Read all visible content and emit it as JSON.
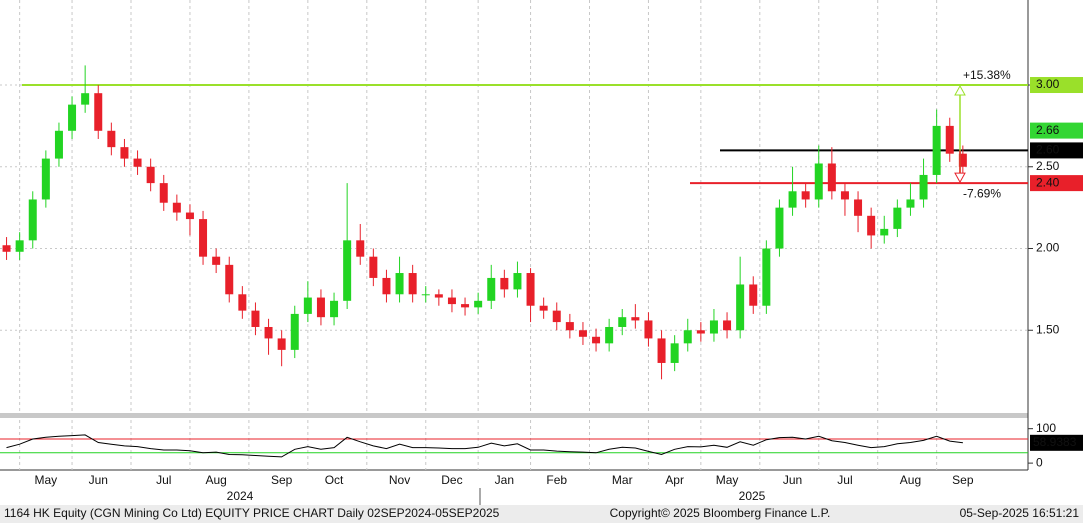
{
  "chart_data": {
    "type": "candlestick",
    "categories": [
      null,
      null,
      null,
      "May",
      null,
      null,
      null,
      "Jun",
      null,
      null,
      null,
      null,
      "Jul",
      null,
      null,
      null,
      "Aug",
      null,
      null,
      null,
      null,
      "Sep",
      null,
      null,
      null,
      "Oct",
      null,
      null,
      null,
      null,
      "Nov",
      null,
      null,
      null,
      "Dec",
      null,
      null,
      null,
      "Jan",
      null,
      null,
      null,
      "Feb",
      null,
      null,
      null,
      null,
      "Mar",
      null,
      null,
      null,
      "Apr",
      null,
      null,
      null,
      "May",
      null,
      null,
      null,
      null,
      "Jun",
      null,
      null,
      null,
      "Jul",
      null,
      null,
      null,
      null,
      "Aug",
      null,
      null,
      null,
      "Sep"
    ],
    "open": [
      2.02,
      1.98,
      2.05,
      2.3,
      2.55,
      2.72,
      2.88,
      2.95,
      2.72,
      2.62,
      2.55,
      2.5,
      2.4,
      2.28,
      2.22,
      2.18,
      1.95,
      1.9,
      1.72,
      1.62,
      1.52,
      1.45,
      1.38,
      1.6,
      1.7,
      1.58,
      1.68,
      2.05,
      1.95,
      1.82,
      1.72,
      1.85,
      1.72,
      1.72,
      1.7,
      1.66,
      1.64,
      1.68,
      1.82,
      1.75,
      1.85,
      1.65,
      1.62,
      1.55,
      1.5,
      1.46,
      1.42,
      1.52,
      1.58,
      1.56,
      1.45,
      1.3,
      1.42,
      1.5,
      1.48,
      1.56,
      1.5,
      1.78,
      1.65,
      2.0,
      2.25,
      2.35,
      2.3,
      2.52,
      2.35,
      2.3,
      2.2,
      2.08,
      2.12,
      2.25,
      2.3,
      2.45,
      2.75,
      2.58
    ],
    "high": [
      2.07,
      2.1,
      2.35,
      2.6,
      2.77,
      2.93,
      3.12,
      3.0,
      2.77,
      2.67,
      2.6,
      2.55,
      2.45,
      2.33,
      2.27,
      2.23,
      2.0,
      1.95,
      1.77,
      1.67,
      1.57,
      1.5,
      1.65,
      1.8,
      1.75,
      1.73,
      2.4,
      2.15,
      2.0,
      1.87,
      1.95,
      1.9,
      1.77,
      1.75,
      1.75,
      1.7,
      1.73,
      1.9,
      1.87,
      1.92,
      1.88,
      1.7,
      1.67,
      1.6,
      1.55,
      1.51,
      1.57,
      1.63,
      1.66,
      1.61,
      1.5,
      1.47,
      1.57,
      1.55,
      1.63,
      1.61,
      1.95,
      1.83,
      2.05,
      2.3,
      2.5,
      2.4,
      2.63,
      2.62,
      2.4,
      2.35,
      2.25,
      2.2,
      2.3,
      2.4,
      2.55,
      2.85,
      2.8,
      2.63
    ],
    "low": [
      1.93,
      1.93,
      2.0,
      2.25,
      2.5,
      2.67,
      2.83,
      2.67,
      2.57,
      2.5,
      2.45,
      2.35,
      2.23,
      2.17,
      2.08,
      1.9,
      1.85,
      1.67,
      1.57,
      1.47,
      1.35,
      1.28,
      1.33,
      1.55,
      1.53,
      1.53,
      1.63,
      1.9,
      1.77,
      1.67,
      1.67,
      1.67,
      1.67,
      1.65,
      1.61,
      1.59,
      1.6,
      1.63,
      1.7,
      1.7,
      1.55,
      1.57,
      1.5,
      1.45,
      1.41,
      1.37,
      1.37,
      1.47,
      1.51,
      1.4,
      1.2,
      1.25,
      1.37,
      1.43,
      1.43,
      1.45,
      1.45,
      1.6,
      1.6,
      1.95,
      2.2,
      2.25,
      2.25,
      2.3,
      2.2,
      2.1,
      2.0,
      2.03,
      2.07,
      2.2,
      2.25,
      2.4,
      2.53,
      2.45
    ],
    "close": [
      1.98,
      2.05,
      2.3,
      2.55,
      2.72,
      2.88,
      2.95,
      2.72,
      2.62,
      2.55,
      2.5,
      2.4,
      2.28,
      2.22,
      2.18,
      1.95,
      1.9,
      1.72,
      1.62,
      1.52,
      1.45,
      1.38,
      1.6,
      1.7,
      1.58,
      1.68,
      2.05,
      1.95,
      1.82,
      1.72,
      1.85,
      1.72,
      1.72,
      1.7,
      1.66,
      1.64,
      1.68,
      1.82,
      1.75,
      1.85,
      1.65,
      1.62,
      1.55,
      1.5,
      1.46,
      1.42,
      1.52,
      1.58,
      1.56,
      1.45,
      1.3,
      1.42,
      1.5,
      1.48,
      1.56,
      1.5,
      1.78,
      1.65,
      2.0,
      2.25,
      2.35,
      2.3,
      2.52,
      2.35,
      2.3,
      2.2,
      2.08,
      2.12,
      2.25,
      2.3,
      2.45,
      2.75,
      2.58,
      2.5
    ],
    "up_color": "#22d422",
    "down_color": "#e8202a",
    "ylim": [
      1.0,
      3.52
    ],
    "yticks": [
      {
        "value": 1.5,
        "label": "1.50"
      },
      {
        "value": 2.0,
        "label": "2.00"
      },
      {
        "value": 2.5,
        "label": "2.50"
      },
      {
        "value": 3.0,
        "label": "3.00"
      }
    ],
    "grid": true,
    "levels": [
      {
        "value": 2.66,
        "label": "2.66",
        "color": "#33d633",
        "text_color": "#000000"
      },
      {
        "value": 3.0,
        "label": "3.00",
        "color": "#9ae02a",
        "text_color": "#000000"
      },
      {
        "value": 2.6,
        "label": "2.60",
        "color": "#000000",
        "text_color": "#ffffff"
      },
      {
        "value": 2.4,
        "label": "2.40",
        "color": "#e8202a",
        "text_color": "#000000"
      }
    ],
    "annotations": [
      "+15.38%",
      "-7.69%"
    ],
    "years": [
      "2024",
      "2025"
    ],
    "rsi": {
      "values": [
        45,
        55,
        70,
        75,
        78,
        80,
        82,
        60,
        55,
        50,
        48,
        42,
        38,
        38,
        36,
        30,
        32,
        25,
        24,
        22,
        20,
        18,
        40,
        48,
        40,
        45,
        75,
        62,
        50,
        42,
        55,
        45,
        45,
        44,
        42,
        42,
        46,
        58,
        50,
        56,
        38,
        38,
        35,
        33,
        32,
        30,
        40,
        46,
        44,
        34,
        25,
        40,
        48,
        47,
        52,
        46,
        62,
        52,
        68,
        74,
        75,
        70,
        78,
        65,
        60,
        52,
        45,
        48,
        56,
        60,
        66,
        78,
        64,
        58.9383
      ],
      "color": "#000000",
      "ylim": [
        -20,
        131
      ],
      "yticks": [
        0,
        100
      ],
      "upper": 70,
      "upper_color": "#e8202a",
      "lower": 30,
      "lower_color": "#22d422"
    },
    "footer": {
      "left": "1164 HK Equity (CGN Mining Co Ltd) EQUITY PRICE CHART  Daily 02SEP2024-05SEP2025",
      "center": "Copyright© 2025 Bloomberg Finance L.P.",
      "right": "05-Sep-2025 16:51:21"
    }
  }
}
